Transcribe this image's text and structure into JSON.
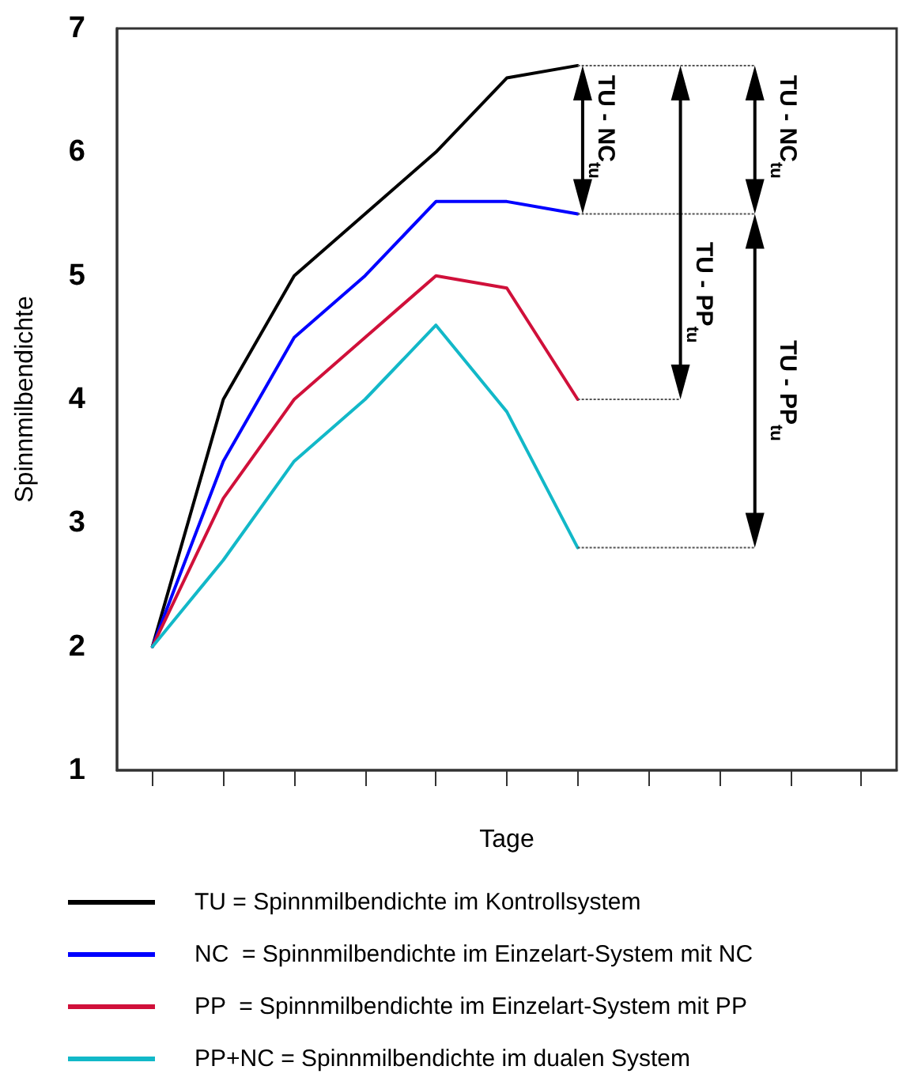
{
  "chart_data": {
    "type": "line",
    "xlabel": "Tage",
    "ylabel": "Spinnmilbendichte",
    "categories": [
      null,
      null,
      null,
      null,
      null,
      null,
      null,
      null,
      null,
      null,
      null
    ],
    "series": [
      {
        "name": "TU = Spinnmilbendichte im Kontrollsystem",
        "color": "#000000",
        "values": [
          2,
          4.0,
          5.0,
          5.5,
          6.0,
          6.6,
          6.7,
          null,
          null,
          null,
          null
        ]
      },
      {
        "name": "NC  = Spinnmilbendichte im Einzelart-System mit NC",
        "color": "#0000ff",
        "values": [
          2,
          3.5,
          4.5,
          5.0,
          5.6,
          5.6,
          5.5,
          null,
          null,
          null,
          null
        ]
      },
      {
        "name": "PP  = Spinnmilbendichte im Einzelart-System mit PP",
        "color": "#d0103a",
        "values": [
          2,
          3.2,
          4.0,
          4.5,
          5.0,
          4.9,
          4.0,
          null,
          null,
          null,
          null
        ]
      },
      {
        "name": "PP+NC = Spinnmilbendichte im dualen System",
        "color": "#12b8c8",
        "values": [
          2,
          2.7,
          3.5,
          4.0,
          4.6,
          3.9,
          2.8,
          null,
          null,
          null,
          null
        ]
      }
    ],
    "annotations": [
      "TU - NC$_{tu}$",
      "TU - PP$_{tu}$",
      "TU - NC$_{tu}$",
      "TU - PP$_{tu}$"
    ],
    "ylim": [
      1,
      7
    ],
    "yticks": [
      1,
      2,
      3,
      4,
      5,
      6,
      7
    ],
    "tick_labels": "y",
    "grid": false,
    "legend": "bottom",
    "marker": "none",
    "line_style": "solid"
  }
}
